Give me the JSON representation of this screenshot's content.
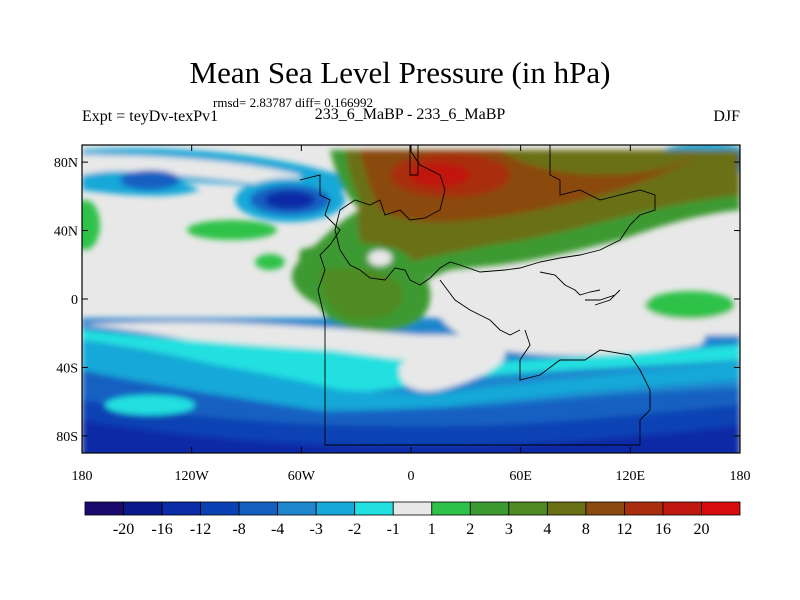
{
  "title": "Mean Sea Level Pressure (in hPa)",
  "stats": "rmsd= 2.83787 diff= 0.166992",
  "experiment": "Expt = teyDv-texPv1",
  "run_label": "233_6_MaBP - 233_6_MaBP",
  "season": "DJF",
  "axes": {
    "lat_ticks": [
      "80N",
      "40N",
      "0",
      "40S",
      "80S"
    ],
    "lat_values": [
      80,
      40,
      0,
      -40,
      -80
    ],
    "lon_ticks": [
      "180",
      "120W",
      "60W",
      "0",
      "60E",
      "120E",
      "180"
    ],
    "lon_values": [
      -180,
      -120,
      -60,
      0,
      60,
      120,
      180
    ]
  },
  "colorbar": {
    "labels": [
      "-20",
      "-16",
      "-12",
      "-8",
      "-4",
      "-3",
      "-2",
      "-1",
      "1",
      "2",
      "3",
      "4",
      "8",
      "12",
      "16",
      "20"
    ],
    "colors": [
      "#1a0a6e",
      "#0a1a8c",
      "#0a2ca6",
      "#0a42b4",
      "#1460c2",
      "#1f86cd",
      "#15a8d8",
      "#22e0e0",
      "#e8e8e8",
      "#2ec24a",
      "#3c9a32",
      "#4f8a22",
      "#6a7015",
      "#8a4a10",
      "#a82e0e",
      "#c01810",
      "#d80c0c"
    ]
  },
  "colors": {
    "background": "#e8e8e8",
    "coast": "#000000"
  }
}
